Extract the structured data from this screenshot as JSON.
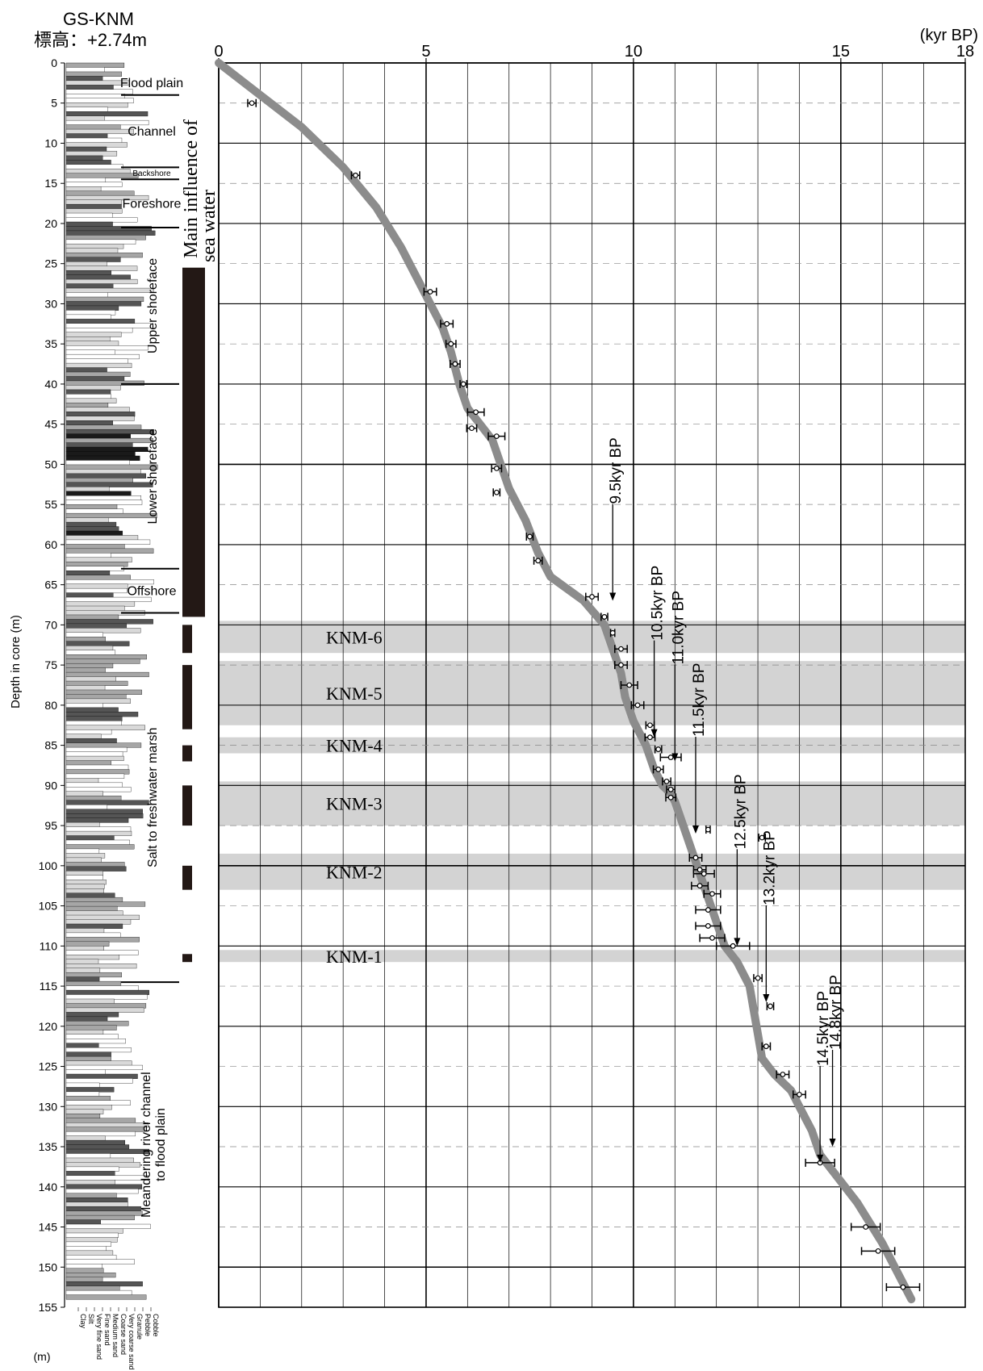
{
  "core": {
    "name": "GS-KNM",
    "elevation": "標高：+2.74m"
  },
  "log": {
    "ylabel": "Depth in core (m)",
    "unit": "(m)",
    "grain_sizes": [
      "Clay",
      "Silt",
      "Very fine sand",
      "Fine sand",
      "Medium sand",
      "Coarse sand",
      "Very coarse sand",
      "Granule",
      "Pebble",
      "Cobble"
    ],
    "facies": [
      {
        "label": "Flood plain",
        "top": 1,
        "bottom": 4
      },
      {
        "label": "Channel",
        "top": 4,
        "bottom": 13
      },
      {
        "label": "Backshore",
        "top": 13,
        "bottom": 14.5
      },
      {
        "label": "Foreshore",
        "top": 14.5,
        "bottom": 20.5
      },
      {
        "label": "Upper shoreface",
        "top": 20.5,
        "bottom": 40
      },
      {
        "label": "Lower shoreface",
        "top": 40,
        "bottom": 63
      },
      {
        "label": "Offshore",
        "top": 63,
        "bottom": 68.5
      },
      {
        "label": "Salt to freshwater marsh",
        "top": 68.5,
        "bottom": 114.5
      },
      {
        "label": "Meandering river channel to flood plain",
        "top": 114.5,
        "bottom": 155
      }
    ],
    "sea_water_label": [
      "Main influence of",
      "sea water"
    ],
    "sea_water_intervals": [
      [
        25.5,
        69
      ],
      [
        70,
        73.5
      ],
      [
        75,
        83
      ],
      [
        85,
        87
      ],
      [
        90,
        95
      ],
      [
        100,
        103
      ],
      [
        111,
        112
      ]
    ]
  },
  "chart_data": {
    "type": "line",
    "title": "",
    "xlabel": "(kyr BP)",
    "ylabel": "Depth in core (m)",
    "xlim": [
      0,
      18
    ],
    "ylim": [
      0,
      155
    ],
    "x_ticks": [
      0,
      5,
      10,
      15,
      18
    ],
    "y_ticks": [
      0,
      5,
      10,
      15,
      20,
      25,
      30,
      35,
      40,
      45,
      50,
      55,
      60,
      65,
      70,
      75,
      80,
      85,
      90,
      95,
      100,
      105,
      110,
      115,
      120,
      125,
      130,
      135,
      140,
      145,
      150,
      155
    ],
    "grid": true,
    "age_depth_curve": {
      "x": [
        0,
        1.0,
        2.0,
        3.0,
        3.8,
        4.4,
        4.8,
        5.1,
        5.4,
        5.6,
        5.8,
        6.0,
        6.3,
        6.6,
        6.8,
        7.0,
        7.4,
        7.7,
        8.0,
        8.8,
        9.3,
        9.5,
        9.7,
        9.8,
        10.0,
        10.3,
        10.5,
        10.7,
        10.9,
        11.0,
        11.2,
        11.4,
        11.6,
        11.8,
        12.0,
        12.2,
        12.5,
        12.8,
        12.9,
        13.0,
        13.1,
        13.4,
        13.8,
        14.0,
        14.3,
        14.5,
        14.8,
        15.4,
        16.0,
        16.7
      ],
      "y": [
        0,
        4,
        8,
        13,
        18,
        23,
        27,
        30,
        33,
        36,
        40,
        43,
        45,
        47,
        50,
        53,
        57,
        61,
        64,
        67,
        70,
        73,
        76,
        79,
        82,
        85,
        88,
        90,
        91,
        92,
        95,
        98,
        101,
        104,
        107,
        110,
        112,
        115,
        118,
        121,
        124,
        126,
        128,
        130,
        133,
        136,
        138,
        142,
        147,
        154
      ]
    },
    "dates": [
      {
        "age": 0.8,
        "depth": 5,
        "err": 0.1
      },
      {
        "age": 3.3,
        "depth": 14,
        "err": 0.1
      },
      {
        "age": 5.1,
        "depth": 28.5,
        "err": 0.15
      },
      {
        "age": 5.5,
        "depth": 32.5,
        "err": 0.15
      },
      {
        "age": 5.6,
        "depth": 35,
        "err": 0.12
      },
      {
        "age": 5.7,
        "depth": 37.5,
        "err": 0.12
      },
      {
        "age": 5.9,
        "depth": 40,
        "err": 0.08
      },
      {
        "age": 6.2,
        "depth": 43.5,
        "err": 0.2
      },
      {
        "age": 6.1,
        "depth": 45.5,
        "err": 0.12
      },
      {
        "age": 6.7,
        "depth": 46.5,
        "err": 0.2
      },
      {
        "age": 6.7,
        "depth": 50.5,
        "err": 0.12
      },
      {
        "age": 6.7,
        "depth": 53.5,
        "err": 0.08
      },
      {
        "age": 7.5,
        "depth": 59,
        "err": 0.08
      },
      {
        "age": 7.7,
        "depth": 62,
        "err": 0.1
      },
      {
        "age": 9.0,
        "depth": 66.5,
        "err": 0.15
      },
      {
        "age": 9.3,
        "depth": 69,
        "err": 0.08
      },
      {
        "age": 9.5,
        "depth": 71,
        "err": 0.05
      },
      {
        "age": 9.7,
        "depth": 73,
        "err": 0.15
      },
      {
        "age": 9.7,
        "depth": 75,
        "err": 0.15
      },
      {
        "age": 9.9,
        "depth": 77.5,
        "err": 0.2
      },
      {
        "age": 10.1,
        "depth": 80,
        "err": 0.15
      },
      {
        "age": 10.4,
        "depth": 82.5,
        "err": 0.1
      },
      {
        "age": 10.4,
        "depth": 84,
        "err": 0.12
      },
      {
        "age": 10.6,
        "depth": 85.5,
        "err": 0.08
      },
      {
        "age": 10.9,
        "depth": 86.5,
        "err": 0.25
      },
      {
        "age": 10.6,
        "depth": 88,
        "err": 0.12
      },
      {
        "age": 10.8,
        "depth": 89.5,
        "err": 0.1
      },
      {
        "age": 10.9,
        "depth": 90.5,
        "err": 0.1
      },
      {
        "age": 10.9,
        "depth": 91.5,
        "err": 0.12
      },
      {
        "age": 11.8,
        "depth": 95.5,
        "err": 0.05
      },
      {
        "age": 13.1,
        "depth": 96.5,
        "err": 0.08
      },
      {
        "age": 11.5,
        "depth": 99,
        "err": 0.15
      },
      {
        "age": 11.6,
        "depth": 100.5,
        "err": 0.15
      },
      {
        "age": 11.6,
        "depth": 102.5,
        "err": 0.2
      },
      {
        "age": 11.7,
        "depth": 101,
        "err": 0.25
      },
      {
        "age": 11.9,
        "depth": 103.5,
        "err": 0.2
      },
      {
        "age": 11.8,
        "depth": 105.5,
        "err": 0.3
      },
      {
        "age": 11.8,
        "depth": 107.5,
        "err": 0.3
      },
      {
        "age": 11.9,
        "depth": 109,
        "err": 0.3
      },
      {
        "age": 12.4,
        "depth": 110,
        "err": 0.4
      },
      {
        "age": 13.0,
        "depth": 114,
        "err": 0.1
      },
      {
        "age": 13.3,
        "depth": 117.5,
        "err": 0.08
      },
      {
        "age": 13.2,
        "depth": 122.5,
        "err": 0.1
      },
      {
        "age": 13.6,
        "depth": 126,
        "err": 0.15
      },
      {
        "age": 14.0,
        "depth": 128.5,
        "err": 0.15
      },
      {
        "age": 14.5,
        "depth": 137,
        "err": 0.35
      },
      {
        "age": 15.6,
        "depth": 145,
        "err": 0.35
      },
      {
        "age": 15.9,
        "depth": 148,
        "err": 0.4
      },
      {
        "age": 16.5,
        "depth": 152.5,
        "err": 0.4
      }
    ],
    "shaded_units": [
      {
        "label": "KNM-6",
        "top": 69.5,
        "bottom": 73.5
      },
      {
        "label": "KNM-5",
        "top": 74.5,
        "bottom": 82.5
      },
      {
        "label": "KNM-4",
        "top": 84,
        "bottom": 86
      },
      {
        "label": "KNM-3",
        "top": 89.5,
        "bottom": 95
      },
      {
        "label": "KNM-2",
        "top": 98.5,
        "bottom": 103
      },
      {
        "label": "KNM-1",
        "top": 110.5,
        "bottom": 112
      }
    ],
    "annotations": [
      {
        "text": "9.5kyr BP",
        "age": 9.5,
        "depth": 67
      },
      {
        "text": "10.5kyr BP",
        "age": 10.5,
        "depth": 84
      },
      {
        "text": "11.0kyr BP",
        "age": 11.0,
        "depth": 87
      },
      {
        "text": "11.5kyr BP",
        "age": 11.5,
        "depth": 96
      },
      {
        "text": "12.5kyr BP",
        "age": 12.5,
        "depth": 110
      },
      {
        "text": "13.2kyr BP",
        "age": 13.2,
        "depth": 117
      },
      {
        "text": "14.5kyr BP",
        "age": 14.5,
        "depth": 137
      },
      {
        "text": "14.8kyr BP",
        "age": 14.8,
        "depth": 135
      }
    ]
  }
}
